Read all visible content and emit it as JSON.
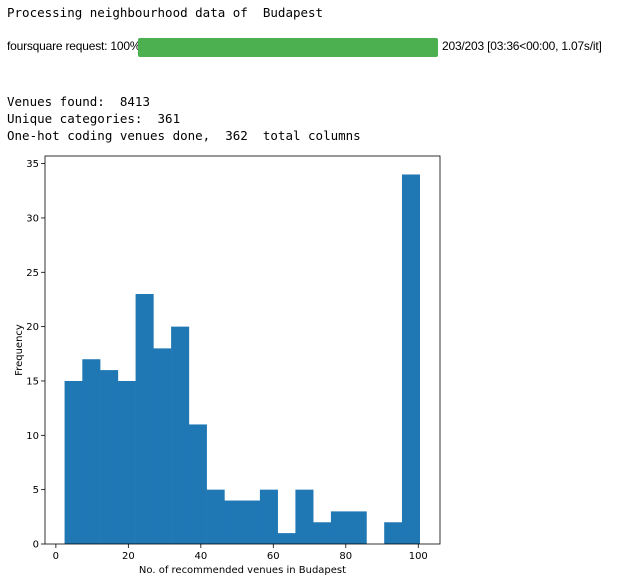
{
  "output": {
    "processing_line": "Processing neighbourhood data of  Budapest",
    "venues_found": "Venues found:  8413",
    "unique_categories": "Unique categories:  361",
    "onehot_line": "One-hot coding venues done,  362  total columns"
  },
  "progress": {
    "label": "foursquare request: 100%",
    "fraction": 1.0,
    "stats": "203/203 [03:36<00:00, 1.07s/it]",
    "color": "#4caf50"
  },
  "chart_data": {
    "type": "bar",
    "title": "",
    "xlabel": "No. of recommended venues in Budapest",
    "ylabel": "Frequency",
    "bin_edges": [
      2.4,
      7.3,
      12.2,
      17.1,
      22.0,
      26.9,
      31.8,
      36.7,
      41.6,
      46.5,
      51.4,
      56.3,
      61.2,
      66.1,
      71.0,
      75.9,
      80.8,
      85.7,
      90.6,
      95.5,
      100.4
    ],
    "values": [
      15,
      17,
      16,
      15,
      23,
      18,
      20,
      11,
      5,
      4,
      4,
      5,
      1,
      5,
      2,
      3,
      3,
      0,
      2,
      34
    ],
    "xlim": [
      -3,
      106
    ],
    "ylim": [
      0,
      35.7
    ],
    "xticks": [
      0,
      20,
      40,
      60,
      80,
      100
    ],
    "yticks": [
      0,
      5,
      10,
      15,
      20,
      25,
      30,
      35
    ],
    "bar_color": "#1f77b4",
    "grid": false
  }
}
